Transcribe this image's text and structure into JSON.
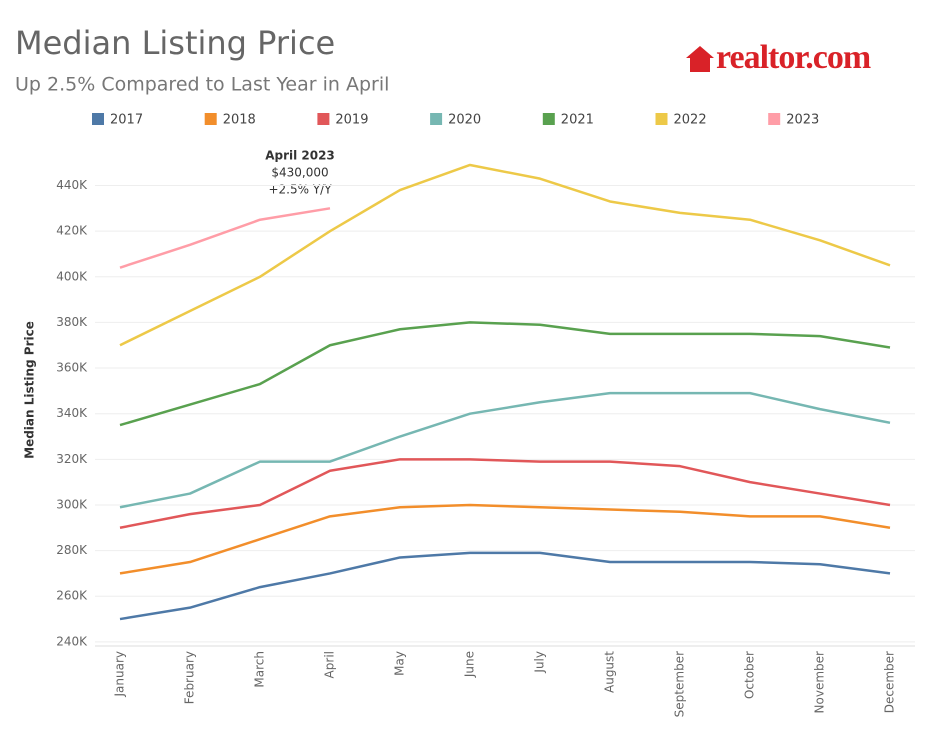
{
  "chart_data": {
    "type": "line",
    "title": "Median Listing Price",
    "subtitle": "Up 2.5% Compared to Last Year in April",
    "logo": "realtor.com",
    "y_label": "Median Listing Price",
    "annotation": [
      "April 2023",
      "$430,000",
      "+2.5% Y/Y"
    ],
    "categories": [
      "January",
      "February",
      "March",
      "April",
      "May",
      "June",
      "July",
      "August",
      "September",
      "October",
      "November",
      "December"
    ],
    "ylim": [
      236000,
      456000
    ],
    "yticks": [
      {
        "value": 240000,
        "label": "240K"
      },
      {
        "value": 260000,
        "label": "260K"
      },
      {
        "value": 280000,
        "label": "280K"
      },
      {
        "value": 300000,
        "label": "300K"
      },
      {
        "value": 320000,
        "label": "320K"
      },
      {
        "value": 340000,
        "label": "340K"
      },
      {
        "value": 360000,
        "label": "360K"
      },
      {
        "value": 380000,
        "label": "380K"
      },
      {
        "value": 400000,
        "label": "400K"
      },
      {
        "value": 420000,
        "label": "420K"
      },
      {
        "value": 440000,
        "label": "440K"
      }
    ],
    "grid": true,
    "series": [
      {
        "name": "2017",
        "color": "#4e79a7",
        "values": [
          250000,
          255000,
          264000,
          270000,
          277000,
          279000,
          279000,
          275000,
          275000,
          275000,
          274000,
          270000
        ]
      },
      {
        "name": "2018",
        "color": "#f28e2b",
        "values": [
          270000,
          275000,
          285000,
          295000,
          299000,
          300000,
          299000,
          298000,
          297000,
          295000,
          295000,
          290000
        ]
      },
      {
        "name": "2019",
        "color": "#e15759",
        "values": [
          290000,
          296000,
          300000,
          315000,
          320000,
          320000,
          319000,
          319000,
          317000,
          310000,
          305000,
          300000
        ]
      },
      {
        "name": "2020",
        "color": "#76b7b2",
        "values": [
          299000,
          305000,
          319000,
          319000,
          330000,
          340000,
          345000,
          349000,
          349000,
          349000,
          342000,
          336000
        ]
      },
      {
        "name": "2021",
        "color": "#59a14f",
        "values": [
          335000,
          344000,
          353000,
          370000,
          377000,
          380000,
          379000,
          375000,
          375000,
          375000,
          374000,
          369000
        ]
      },
      {
        "name": "2022",
        "color": "#edc948",
        "values": [
          370000,
          385000,
          400000,
          420000,
          438000,
          449000,
          443000,
          433000,
          428000,
          425000,
          416000,
          405000
        ]
      },
      {
        "name": "2023",
        "color": "#ff9da7",
        "values": [
          404000,
          414000,
          425000,
          430000,
          null,
          null,
          null,
          null,
          null,
          null,
          null,
          null
        ]
      }
    ]
  }
}
